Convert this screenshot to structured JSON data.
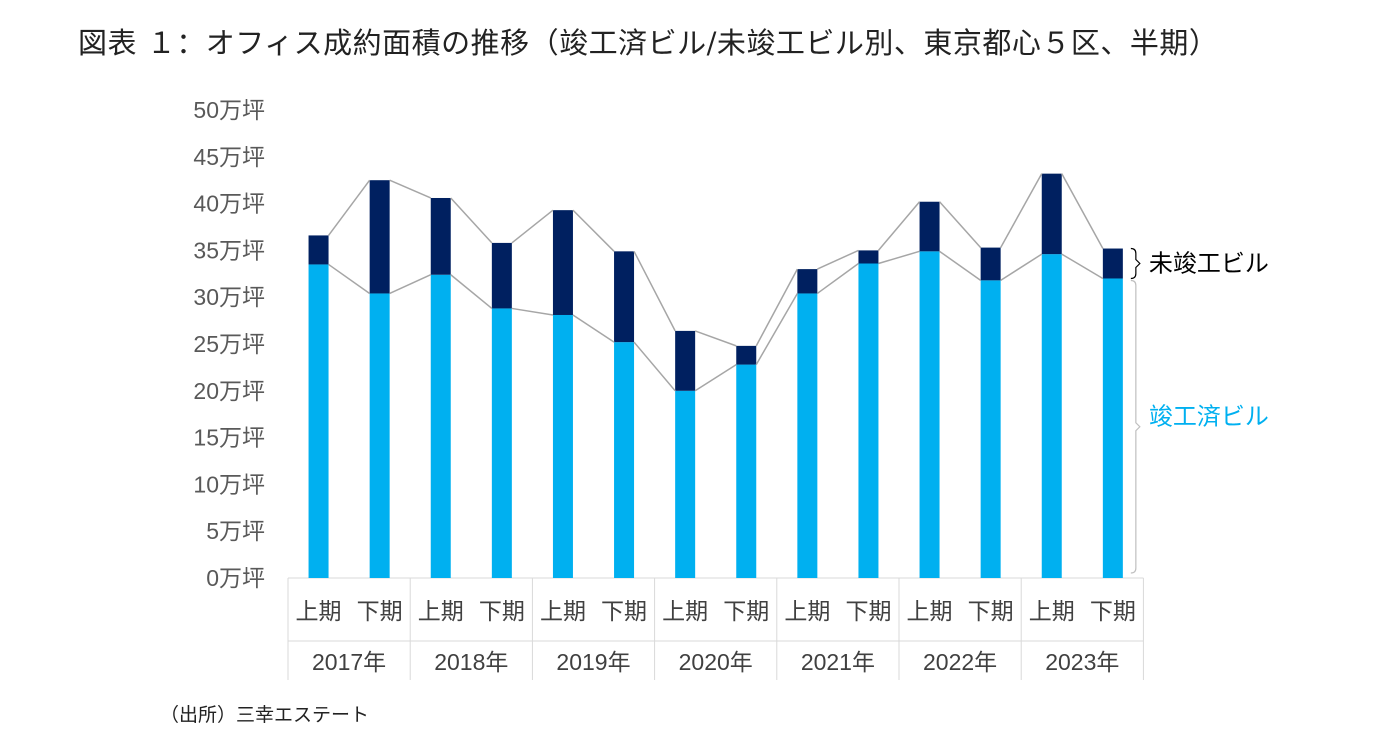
{
  "title": "図表 １：オフィス成約面積の推移（竣工済ビル/未竣工ビル別、東京都心５区、半期）",
  "source": "（出所）三幸エステート",
  "colors": {
    "completed": "#00B0F0",
    "uncompleted": "#002060",
    "connector": "#A6A6A6",
    "axis": "#D9D9D9",
    "completed_label": "#00B0F0",
    "uncompleted_label": "#000000"
  },
  "chart_data": {
    "type": "bar",
    "stacked": true,
    "title": "図表 １：オフィス成約面積の推移（竣工済ビル/未竣工ビル別、東京都心５区、半期）",
    "unit": "万坪",
    "ylim": [
      0,
      50
    ],
    "yticks": [
      0,
      5,
      10,
      15,
      20,
      25,
      30,
      35,
      40,
      45,
      50
    ],
    "ytick_labels": [
      "0万坪",
      "5万坪",
      "10万坪",
      "15万坪",
      "20万坪",
      "25万坪",
      "30万坪",
      "35万坪",
      "40万坪",
      "45万坪",
      "50万坪"
    ],
    "grid": false,
    "legend_placement": "right, inline labels",
    "categories": [
      "上期",
      "下期",
      "上期",
      "下期",
      "上期",
      "下期",
      "上期",
      "下期",
      "上期",
      "下期",
      "上期",
      "下期",
      "上期",
      "下期"
    ],
    "years": [
      "2017年",
      "2018年",
      "2019年",
      "2020年",
      "2021年",
      "2022年",
      "2023年"
    ],
    "series": [
      {
        "name": "竣工済ビル",
        "values": [
          33.5,
          30.4,
          32.4,
          28.8,
          28.1,
          25.2,
          20.0,
          22.8,
          30.4,
          33.6,
          34.9,
          31.8,
          34.6,
          32.0
        ]
      },
      {
        "name": "未竣工ビル",
        "values": [
          3.1,
          12.1,
          8.2,
          7.0,
          11.2,
          9.7,
          6.4,
          2.0,
          2.6,
          1.4,
          5.3,
          3.5,
          8.6,
          3.2
        ]
      }
    ]
  }
}
